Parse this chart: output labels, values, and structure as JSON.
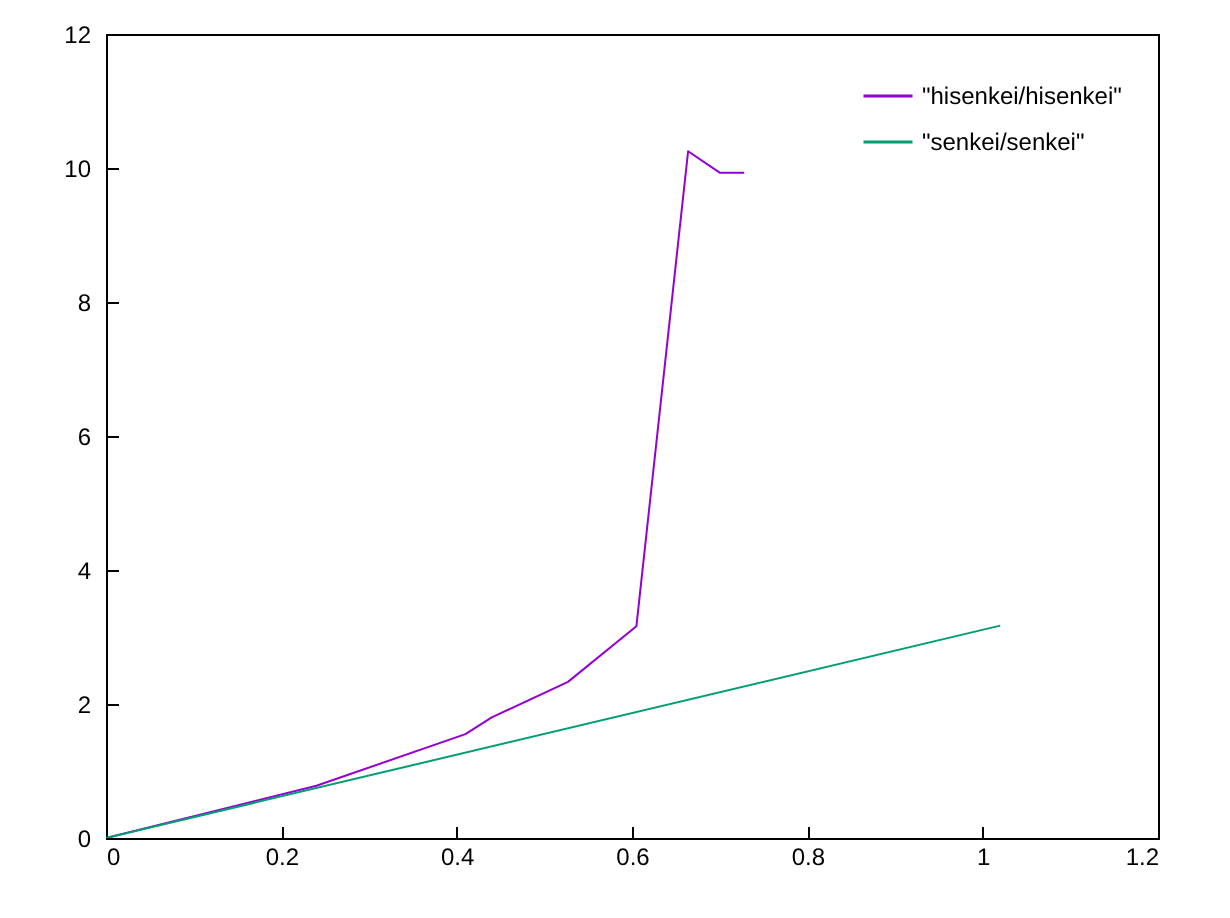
{
  "chart_data": {
    "type": "line",
    "xlim": [
      0,
      1.2
    ],
    "ylim": [
      0,
      12
    ],
    "xticks": [
      0,
      0.2,
      0.4,
      0.6,
      0.8,
      1,
      1.2
    ],
    "yticks": [
      0,
      2,
      4,
      6,
      8,
      10,
      12
    ],
    "grid": false,
    "legend": "top right",
    "marker": "none",
    "line_style": "solid",
    "series": [
      {
        "name": "\"hisenkei/hisenkei\"",
        "color": "#9400d3",
        "x": [
          0,
          0.24,
          0.41,
          0.44,
          0.527,
          0.605,
          0.664,
          0.7,
          0.728
        ],
        "values": [
          0,
          0.78,
          1.55,
          1.8,
          2.33,
          3.16,
          10.25,
          9.93,
          9.93
        ]
      },
      {
        "name": "\"senkei/senkei\"",
        "color": "#009e73",
        "x": [
          0,
          1.02
        ],
        "values": [
          0,
          3.17
        ]
      }
    ]
  }
}
